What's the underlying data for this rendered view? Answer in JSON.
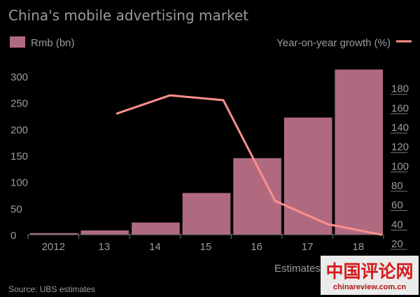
{
  "chart_data": {
    "type": "bar+line",
    "title": "China's mobile advertising market",
    "categories": [
      "2012",
      "13",
      "14",
      "15",
      "16",
      "17",
      "18"
    ],
    "series": [
      {
        "name": "Rmb (bn)",
        "kind": "bar",
        "axis": "left",
        "values": [
          3,
          8,
          23,
          79,
          145,
          222,
          313
        ]
      },
      {
        "name": "Year-on-year growth (%)",
        "kind": "line",
        "axis": "right",
        "values": [
          null,
          160,
          179,
          174,
          70,
          46,
          35
        ]
      }
    ],
    "y_left": {
      "ylim": [
        0,
        320
      ],
      "ticks": [
        0,
        50,
        100,
        150,
        200,
        250,
        300
      ]
    },
    "y_right": {
      "ylim": [
        20,
        200
      ],
      "ticks": [
        20,
        40,
        60,
        80,
        100,
        120,
        140,
        160,
        180
      ]
    },
    "annotation": "Estimates",
    "source": "Source: UBS estimates",
    "grid": false,
    "legend_placement": "top",
    "colors": {
      "background": "#000000",
      "bar": "#b06a80",
      "line": "#ff8f8c",
      "text": "#9b9b9b",
      "axis": "#777777"
    }
  },
  "watermark": {
    "text": "中国评论网",
    "url": "chinareview.com.cn"
  }
}
